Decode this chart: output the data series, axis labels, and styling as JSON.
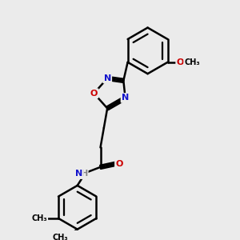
{
  "background_color": "#ebebeb",
  "bond_color": "#000000",
  "N_color": "#1414cc",
  "O_color": "#cc0000",
  "H_color": "#808080",
  "bond_width": 1.8,
  "dbo": 0.06,
  "figsize": [
    3.0,
    3.0
  ],
  "dpi": 100,
  "xlim": [
    0,
    10
  ],
  "ylim": [
    0,
    10
  ]
}
